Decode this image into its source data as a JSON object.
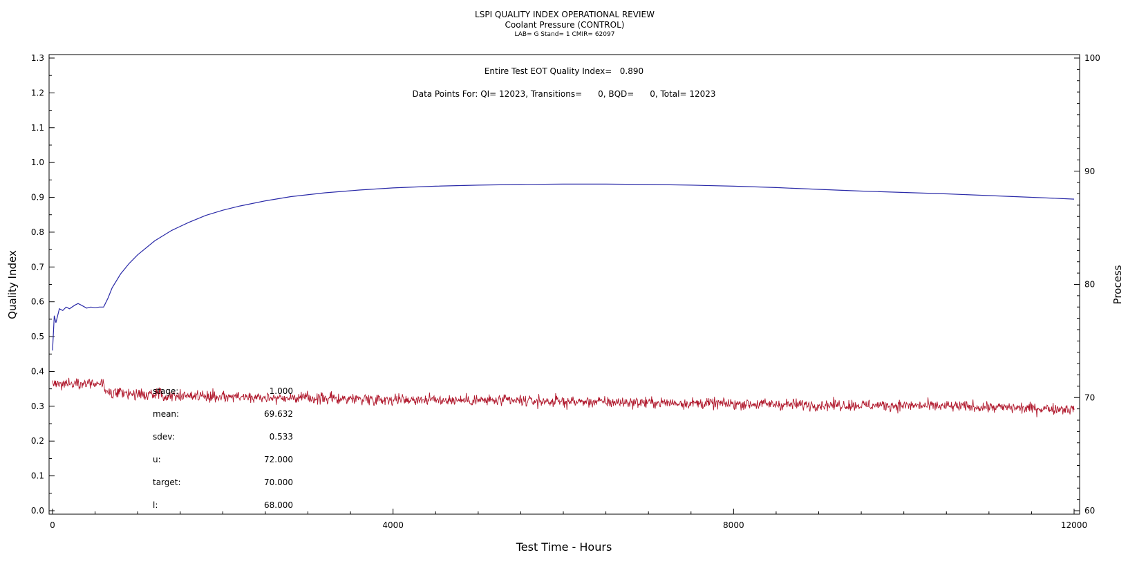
{
  "header": {
    "title": "LSPI QUALITY INDEX OPERATIONAL REVIEW",
    "subtitle": "Coolant Pressure (CONTROL)",
    "info": "LAB= G Stand= 1 CMIR= 62097"
  },
  "annotations": {
    "eot": "Entire Test EOT Quality Index=   0.890",
    "points": "Data Points For: QI= 12023, Transitions=      0, BQD=      0, Total= 12023"
  },
  "stats": [
    {
      "label": "stage:",
      "value": "1.000"
    },
    {
      "label": "mean:",
      "value": "69.632"
    },
    {
      "label": "sdev:",
      "value": "0.533"
    },
    {
      "label": "u:",
      "value": "72.000"
    },
    {
      "label": "target:",
      "value": "70.000"
    },
    {
      "label": "l:",
      "value": "68.000"
    }
  ],
  "colors": {
    "quality": "#2a2aa8",
    "process": "#b0182c"
  },
  "chart_data": {
    "type": "line",
    "xlabel": "Test Time - Hours",
    "ylabel": "Quality Index",
    "y2label": "Process",
    "xlim": [
      0,
      12000
    ],
    "ylim": [
      0,
      1.3
    ],
    "y2lim": [
      60,
      100
    ],
    "x_ticks": [
      "0",
      "4000",
      "8000",
      "12000"
    ],
    "y_ticks": [
      "0.0",
      "0.1",
      "0.2",
      "0.3",
      "0.4",
      "0.5",
      "0.6",
      "0.7",
      "0.8",
      "0.9",
      "1.0",
      "1.1",
      "1.2",
      "1.3"
    ],
    "y2_ticks": [
      "60",
      "70",
      "80",
      "90",
      "100"
    ],
    "grid": false,
    "series": [
      {
        "axis": "left",
        "x": [
          0,
          20,
          40,
          80,
          120,
          160,
          200,
          260,
          300,
          340,
          400,
          450,
          500,
          550,
          600,
          650,
          700,
          800,
          900,
          1000,
          1200,
          1400,
          1600,
          1800,
          2000,
          2200,
          2500,
          2800,
          3200,
          3600,
          4000,
          4500,
          5000,
          5500,
          6000,
          6500,
          7000,
          7500,
          8000,
          8500,
          9000,
          9500,
          10000,
          10500,
          11000,
          11500,
          12000
        ],
        "values": [
          0.46,
          0.56,
          0.54,
          0.58,
          0.575,
          0.585,
          0.58,
          0.59,
          0.595,
          0.59,
          0.582,
          0.585,
          0.583,
          0.585,
          0.585,
          0.61,
          0.64,
          0.68,
          0.71,
          0.735,
          0.775,
          0.805,
          0.828,
          0.848,
          0.863,
          0.875,
          0.89,
          0.902,
          0.913,
          0.921,
          0.927,
          0.932,
          0.935,
          0.937,
          0.938,
          0.938,
          0.937,
          0.935,
          0.932,
          0.928,
          0.923,
          0.918,
          0.914,
          0.91,
          0.905,
          0.9,
          0.895
        ]
      },
      {
        "axis": "right",
        "x": [
          0,
          300,
          600,
          620,
          1000,
          2000,
          3000,
          4000,
          5000,
          6000,
          7000,
          8000,
          9000,
          10000,
          11000,
          11500,
          12000
        ],
        "values": [
          71.2,
          71.3,
          71.2,
          70.4,
          70.3,
          70.1,
          69.95,
          69.85,
          69.75,
          69.65,
          69.55,
          69.45,
          69.35,
          69.3,
          69.15,
          69.05,
          69.0
        ],
        "noise_sd": 0.25
      }
    ]
  }
}
